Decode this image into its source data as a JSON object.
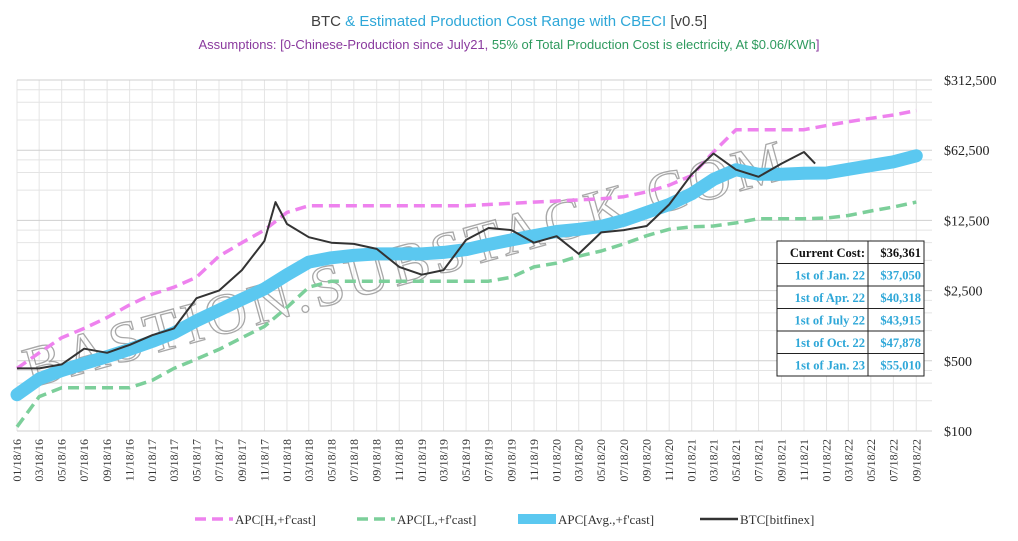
{
  "title": {
    "part1": "BTC",
    "part2": "& Estimated Production Cost Range with CBECI",
    "part3": "[v0.5]"
  },
  "subtitle": {
    "part1": "Assumptions: [0-Chinese-Production  since July21, ",
    "part2": "55% of Total Production  Cost is electricity, At $0.06/KWh",
    "part3": "]"
  },
  "watermark": "BASTION.SUBSTACK.COM",
  "colors": {
    "high": "#ee82ee",
    "low": "#7ccf9a",
    "avg": "#5bc8f0",
    "btc": "#333333",
    "grid": "#e4e4e4",
    "table_text": "#2ea7d8"
  },
  "chart_data": {
    "type": "line",
    "title": "BTC & Estimated Production Cost Range with CBECI  [v0.5]",
    "y_scale": "log",
    "ylim": [
      100,
      312500
    ],
    "y_ticks": [
      100,
      500,
      2500,
      12500,
      62500,
      312500
    ],
    "y_tick_labels": [
      "$100",
      "$500",
      "$2,500",
      "$12,500",
      "$62,500",
      "$312,500"
    ],
    "x_tick_labels": [
      "01/18/16",
      "03/18/16",
      "05/18/16",
      "07/18/16",
      "09/18/16",
      "11/18/16",
      "01/18/17",
      "03/18/17",
      "05/18/17",
      "07/18/17",
      "09/18/17",
      "11/18/17",
      "01/18/18",
      "03/18/18",
      "05/18/18",
      "07/18/18",
      "09/18/18",
      "11/18/18",
      "01/18/19",
      "03/18/19",
      "05/18/19",
      "07/18/19",
      "09/18/19",
      "11/18/19",
      "01/18/20",
      "03/18/20",
      "05/18/20",
      "07/18/20",
      "09/18/20",
      "11/18/20",
      "01/18/21",
      "03/18/21",
      "05/18/21",
      "07/18/21",
      "09/18/21",
      "11/18/21",
      "01/18/22",
      "03/18/22",
      "05/18/22",
      "07/18/22",
      "09/18/22"
    ],
    "grid": true,
    "legend_position": "bottom",
    "series": [
      {
        "name": "APC[H,+f'cast]",
        "style": "dashed",
        "color": "#ee82ee",
        "x": [
          "01/18/16",
          "03/18/16",
          "05/18/16",
          "07/18/16",
          "09/18/16",
          "11/18/16",
          "01/18/17",
          "03/18/17",
          "05/18/17",
          "07/18/17",
          "09/18/17",
          "11/18/17",
          "01/18/18",
          "03/18/18",
          "05/18/18",
          "07/18/18",
          "09/18/18",
          "11/18/18",
          "01/18/19",
          "03/18/19",
          "05/18/19",
          "07/18/19",
          "09/18/19",
          "11/18/19",
          "01/18/20",
          "03/18/20",
          "05/18/20",
          "07/18/20",
          "09/18/20",
          "11/18/20",
          "01/18/21",
          "03/18/21",
          "05/18/21",
          "07/18/21",
          "09/18/21",
          "11/18/21",
          "01/18/22",
          "03/18/22",
          "05/18/22",
          "07/18/22",
          "09/18/22"
        ],
        "values": [
          420,
          600,
          850,
          1050,
          1350,
          1800,
          2300,
          2700,
          3400,
          5500,
          7500,
          10000,
          15000,
          17500,
          17500,
          17500,
          17500,
          17500,
          17500,
          17500,
          17500,
          18000,
          18500,
          19000,
          19500,
          20000,
          20500,
          21500,
          24000,
          28000,
          35000,
          60000,
          100000,
          100000,
          100000,
          100000,
          110000,
          120000,
          130000,
          140000,
          155000
        ]
      },
      {
        "name": "APC[L,+f'cast]",
        "style": "dashed",
        "color": "#7ccf9a",
        "x": [
          "01/18/16",
          "03/18/16",
          "05/18/16",
          "07/18/16",
          "09/18/16",
          "11/18/16",
          "01/18/17",
          "03/18/17",
          "05/18/17",
          "07/18/17",
          "09/18/17",
          "11/18/17",
          "01/18/18",
          "03/18/18",
          "05/18/18",
          "07/18/18",
          "09/18/18",
          "11/18/18",
          "01/18/19",
          "03/18/19",
          "05/18/19",
          "07/18/19",
          "09/18/19",
          "11/18/19",
          "01/18/20",
          "03/18/20",
          "05/18/20",
          "07/18/20",
          "09/18/20",
          "11/18/20",
          "01/18/21",
          "03/18/21",
          "05/18/21",
          "07/18/21",
          "09/18/21",
          "11/18/21",
          "01/18/22",
          "03/18/22",
          "05/18/22",
          "07/18/22",
          "09/18/22"
        ],
        "values": [
          110,
          220,
          270,
          270,
          270,
          270,
          320,
          420,
          520,
          650,
          850,
          1100,
          1700,
          2700,
          3100,
          3100,
          3100,
          3100,
          3100,
          3100,
          3100,
          3100,
          3400,
          4300,
          4700,
          5500,
          6200,
          7300,
          8800,
          10200,
          10800,
          11000,
          11800,
          13000,
          13000,
          13000,
          13200,
          14000,
          15500,
          17000,
          19000
        ]
      },
      {
        "name": "APC[Avg.,+f'cast]",
        "style": "thick",
        "color": "#5bc8f0",
        "x": [
          "01/18/16",
          "03/18/16",
          "05/18/16",
          "07/18/16",
          "09/18/16",
          "11/18/16",
          "01/18/17",
          "03/18/17",
          "05/18/17",
          "07/18/17",
          "09/18/17",
          "11/18/17",
          "01/18/18",
          "03/18/18",
          "05/18/18",
          "07/18/18",
          "09/18/18",
          "11/18/18",
          "01/18/19",
          "03/18/19",
          "05/18/19",
          "07/18/19",
          "09/18/19",
          "11/18/19",
          "01/18/20",
          "03/18/20",
          "05/18/20",
          "07/18/20",
          "09/18/20",
          "11/18/20",
          "01/18/21",
          "03/18/21",
          "05/18/21",
          "07/18/21",
          "09/18/21",
          "11/18/21",
          "01/18/22",
          "03/18/22",
          "05/18/22",
          "07/18/22",
          "09/18/22"
        ],
        "values": [
          230,
          330,
          400,
          470,
          550,
          650,
          780,
          950,
          1250,
          1600,
          2050,
          2600,
          3600,
          4800,
          5300,
          5600,
          5800,
          5800,
          5800,
          6000,
          6400,
          7200,
          8000,
          8800,
          9700,
          10200,
          10900,
          12500,
          15000,
          18000,
          23000,
          32000,
          40000,
          36000,
          36000,
          36800,
          37050,
          40318,
          43915,
          47878,
          55010
        ]
      },
      {
        "name": "BTC[bitfinex]",
        "style": "solid",
        "color": "#333333",
        "x": [
          "01/18/16",
          "03/18/16",
          "05/18/16",
          "07/18/16",
          "09/18/16",
          "11/18/16",
          "01/18/17",
          "03/18/17",
          "05/18/17",
          "07/18/17",
          "09/18/17",
          "11/18/17",
          "12/18/17",
          "01/18/18",
          "03/18/18",
          "05/18/18",
          "07/18/18",
          "09/18/18",
          "11/18/18",
          "01/18/19",
          "03/18/19",
          "05/18/19",
          "07/18/19",
          "09/18/19",
          "11/18/19",
          "01/18/20",
          "03/18/20",
          "05/18/20",
          "07/18/20",
          "09/18/20",
          "11/18/20",
          "01/18/21",
          "03/18/21",
          "05/18/21",
          "07/18/21",
          "09/18/21",
          "11/18/21",
          "12/18/21"
        ],
        "values": [
          420,
          420,
          460,
          660,
          600,
          720,
          900,
          1050,
          2100,
          2500,
          4000,
          7800,
          19000,
          11500,
          8500,
          7500,
          7300,
          6500,
          4300,
          3600,
          4000,
          8000,
          10500,
          10000,
          7500,
          8700,
          5800,
          9500,
          10000,
          11000,
          18000,
          36000,
          58000,
          40000,
          34000,
          46000,
          60000,
          46000
        ]
      }
    ]
  },
  "cost_table": {
    "current": {
      "label": "Current Cost:",
      "value": "$36,361"
    },
    "rows": [
      {
        "label": "1st of Jan. 22",
        "value": "$37,050"
      },
      {
        "label": "1st of Apr. 22",
        "value": "$40,318"
      },
      {
        "label": "1st of July 22",
        "value": "$43,915"
      },
      {
        "label": "1st of Oct. 22",
        "value": "$47,878"
      },
      {
        "label": "1st of Jan. 23",
        "value": "$55,010"
      }
    ]
  }
}
